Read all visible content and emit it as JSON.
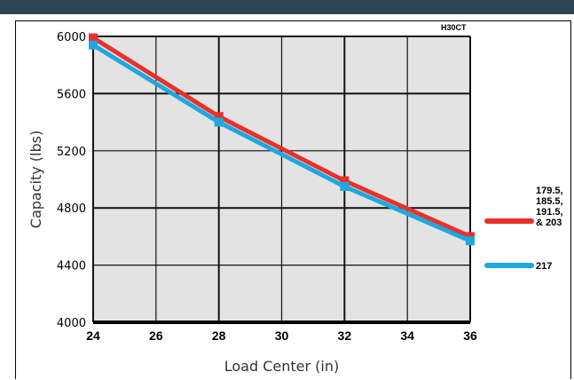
{
  "chart_data": {
    "type": "line",
    "title": "H30CT",
    "xlabel": "Load Center (in)",
    "ylabel": "Capacity (lbs)",
    "xlim": [
      24,
      36
    ],
    "ylim": [
      4000,
      6000
    ],
    "x_ticks": [
      24,
      26,
      28,
      30,
      32,
      34,
      36
    ],
    "y_ticks": [
      4000,
      4400,
      4800,
      5200,
      5600,
      6000
    ],
    "grid": true,
    "legend_position": "right",
    "series": [
      {
        "name": "179.5, 185.5, 191.5, & 203",
        "name_lines": [
          "179.5,",
          "185.5,",
          "191.5,",
          "& 203"
        ],
        "color": "#e8312a",
        "x": [
          24,
          28,
          32,
          36
        ],
        "y": [
          5990,
          5440,
          4990,
          4600
        ]
      },
      {
        "name": "217",
        "name_lines": [
          "217"
        ],
        "color": "#1ea8df",
        "x": [
          24,
          28,
          32,
          36
        ],
        "y": [
          5940,
          5400,
          4950,
          4570
        ]
      }
    ]
  }
}
